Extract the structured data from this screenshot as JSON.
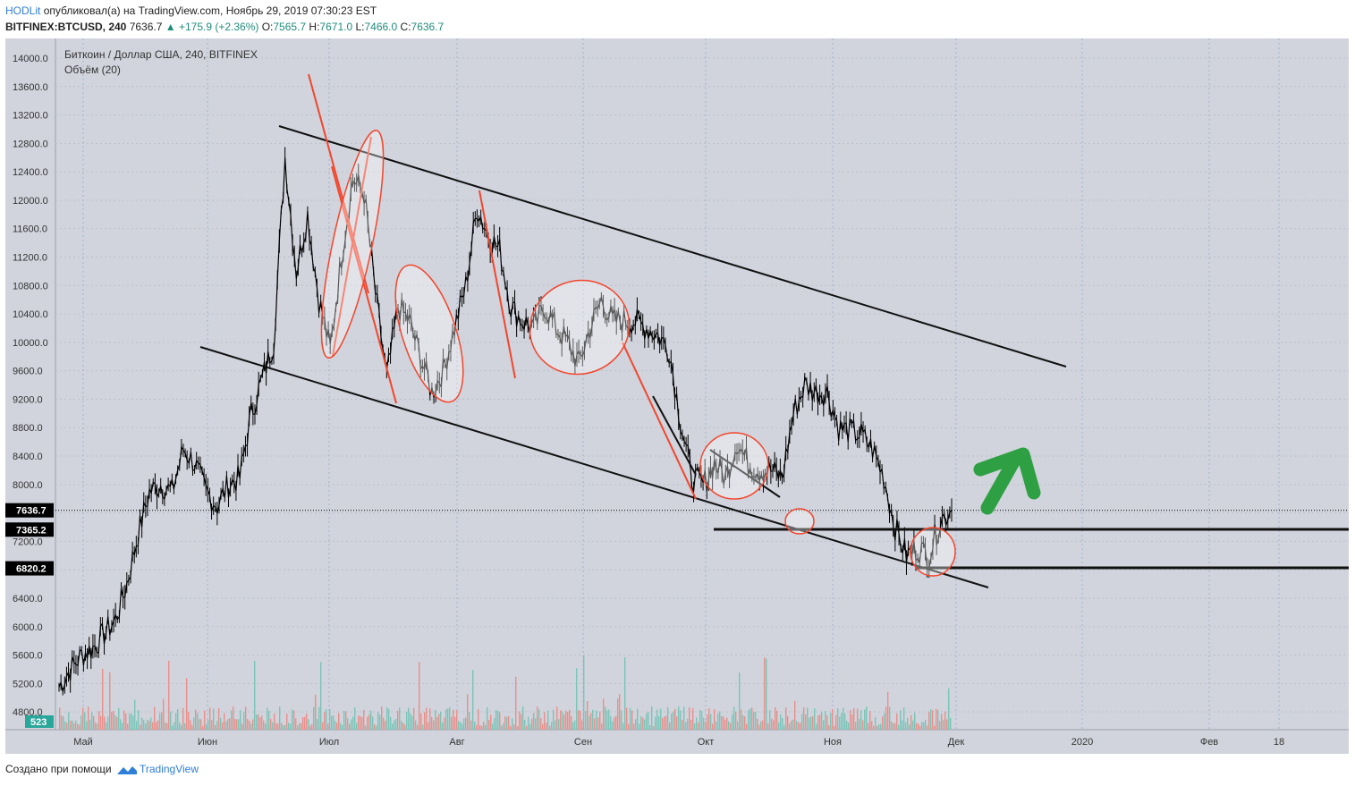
{
  "header": {
    "user": "HODLit",
    "published": "опубликовал(а) на TradingView.com, Ноябрь 29, 2019 07:30:23 EST",
    "symbol": "BITFINEX:BTCUSD, 240",
    "price": "7636.7",
    "change": "▲ +175.9 (+2.36%)",
    "o_label": "O:",
    "o": "7565.7",
    "h_label": "H:",
    "h": "7671.0",
    "l_label": "L:",
    "l": "7466.0",
    "c_label": "C:",
    "c": "7636.7"
  },
  "footer": {
    "created": "Создано при помощи",
    "brand": "TradingView"
  },
  "colors": {
    "plot_bg": "#d1d4dc",
    "candles": "#000000",
    "red_lines": "#f2462d",
    "volume_up": "#7ac4b8",
    "volume_down": "#e98f8a",
    "arrow": "#2ea043",
    "price_badge": "#000000"
  },
  "chart_data": {
    "type": "line",
    "title": "Биткоин / Доллар США, 240, BITFINEX",
    "subtitle": "Объём (20)",
    "ylim": [
      4600,
      14300
    ],
    "y_ticks": [
      4800,
      5200,
      5600,
      6000,
      6400,
      6800,
      7200,
      7600,
      8000,
      8400,
      8800,
      9200,
      9600,
      10000,
      10400,
      10800,
      11200,
      11600,
      12000,
      12400,
      12800,
      13200,
      13600,
      14000
    ],
    "x_ticks": [
      "Май",
      "Июн",
      "Июл",
      "Авг",
      "Сен",
      "Окт",
      "Ноя",
      "Дек",
      "2020",
      "Фев",
      "18"
    ],
    "x": [
      "Apr 25",
      "Apr 28",
      "May 1",
      "May 5",
      "May 8",
      "May 11",
      "May 14",
      "May 17",
      "May 20",
      "May 23",
      "May 26",
      "May 29",
      "Jun 1",
      "Jun 4",
      "Jun 7",
      "Jun 10",
      "Jun 13",
      "Jun 16",
      "Jun 19",
      "Jun 22",
      "Jun 26",
      "Jun 27",
      "Jun 29",
      "Jul 1",
      "Jul 2",
      "Jul 5",
      "Jul 8",
      "Jul 10",
      "Jul 13",
      "Jul 16",
      "Jul 17",
      "Jul 20",
      "Jul 23",
      "Jul 25",
      "Jul 28",
      "Jul 30",
      "Aug 1",
      "Aug 4",
      "Aug 6",
      "Aug 8",
      "Aug 11",
      "Aug 14",
      "Aug 16",
      "Aug 19",
      "Aug 22",
      "Aug 25",
      "Aug 29",
      "Sep 1",
      "Sep 4",
      "Sep 7",
      "Sep 10",
      "Sep 13",
      "Sep 16",
      "Sep 19",
      "Sep 22",
      "Sep 24",
      "Sep 26",
      "Sep 29",
      "Oct 2",
      "Oct 6",
      "Oct 10",
      "Oct 13",
      "Oct 17",
      "Oct 21",
      "Oct 23",
      "Oct 25",
      "Oct 27",
      "Oct 30",
      "Nov 3",
      "Nov 6",
      "Nov 9",
      "Nov 12",
      "Nov 15",
      "Nov 18",
      "Nov 21",
      "Nov 22",
      "Nov 24",
      "Nov 25",
      "Nov 27",
      "Nov 29"
    ],
    "series": [
      {
        "values": [
          5150,
          5400,
          5600,
          5700,
          5900,
          6100,
          6600,
          7300,
          7900,
          8000,
          7900,
          8500,
          8300,
          7900,
          7700,
          8000,
          8100,
          9000,
          9500,
          10000,
          12600,
          11000,
          11800,
          10600,
          9900,
          11200,
          12300,
          12100,
          10700,
          9500,
          10500,
          10300,
          9800,
          9300,
          9600,
          10200,
          10800,
          11900,
          11500,
          11300,
          10500,
          10300,
          10200,
          10500,
          10200,
          10000,
          9700,
          10200,
          10600,
          10300,
          10300,
          10300,
          10200,
          10100,
          9900,
          8900,
          8100,
          8000,
          8300,
          8100,
          8600,
          8300,
          8200,
          8200,
          8100,
          9000,
          9400,
          9300,
          9300,
          8800,
          8750,
          8700,
          8500,
          8100,
          7400,
          7000,
          7100,
          7000,
          7500,
          7640
        ]
      }
    ],
    "volume_label": "523",
    "price_labels": [
      "7636.7",
      "7365.2",
      "6820.2"
    ],
    "levels": [
      7365.2,
      6820.2
    ],
    "annotations": "descending channel trendlines, red impulse lines, red ellipses, green up arrow"
  }
}
